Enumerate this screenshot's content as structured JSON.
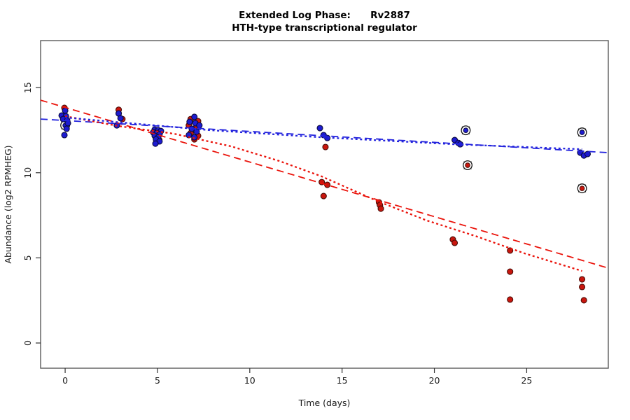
{
  "title": {
    "line1": "Extended Log Phase:      Rv2887",
    "line2": "HTH-type transcriptional regulator"
  },
  "chart_data": {
    "type": "scatter",
    "title": "Extended Log Phase: Rv2887 — HTH-type transcriptional regulator",
    "xlabel": "Time  (days)",
    "ylabel": "Abundance  (log2 RPMHEG)",
    "xlim": [
      -1.33,
      29.42
    ],
    "ylim": [
      -1.48,
      17.76
    ],
    "xticks": [
      0,
      5,
      10,
      15,
      20,
      25
    ],
    "yticks": [
      0,
      5,
      10,
      15
    ],
    "grid": false,
    "legend": "none",
    "colors": {
      "red_point_fill": "#c9160e",
      "red_point_stroke": "#4a0d07",
      "blue_point_fill": "#1d1bd0",
      "blue_point_stroke": "#0a0a3c",
      "red_line": "#ea120a",
      "blue_line": "#2323dd",
      "ring": "#141414",
      "box": "#5a5a5a",
      "tick": "#333333",
      "text": "#1a1a1a"
    },
    "series": [
      {
        "name": "red-points",
        "marker": "filled-circle",
        "color_key": "red",
        "points": [
          [
            -0.04,
            13.81
          ],
          [
            -0.04,
            13.24
          ],
          [
            2.9,
            13.7
          ],
          [
            3.1,
            13.15
          ],
          [
            5.0,
            12.29
          ],
          [
            5.1,
            11.92
          ],
          [
            6.8,
            13.15
          ],
          [
            7.2,
            13.03
          ],
          [
            6.7,
            12.78
          ],
          [
            7.1,
            12.66
          ],
          [
            6.8,
            12.33
          ],
          [
            7.2,
            12.17
          ],
          [
            7.0,
            11.96
          ],
          [
            14.1,
            11.51
          ],
          [
            13.9,
            9.45
          ],
          [
            14.2,
            9.29
          ],
          [
            14.0,
            8.63
          ],
          [
            17.0,
            8.26
          ],
          [
            17.05,
            8.1
          ],
          [
            17.1,
            7.89
          ],
          [
            21.0,
            6.08
          ],
          [
            21.1,
            5.88
          ],
          [
            24.1,
            5.43
          ],
          [
            24.1,
            4.19
          ],
          [
            24.1,
            2.55
          ],
          [
            28.0,
            3.74
          ],
          [
            28.0,
            3.29
          ],
          [
            28.1,
            2.51
          ]
        ]
      },
      {
        "name": "blue-points",
        "marker": "filled-circle",
        "color_key": "blue",
        "points": [
          [
            0.0,
            13.65
          ],
          [
            -0.19,
            13.36
          ],
          [
            0.04,
            13.32
          ],
          [
            -0.11,
            13.15
          ],
          [
            0.11,
            13.07
          ],
          [
            0.15,
            12.91
          ],
          [
            0.08,
            12.58
          ],
          [
            -0.04,
            12.21
          ],
          [
            2.9,
            13.48
          ],
          [
            3.0,
            13.2
          ],
          [
            2.8,
            12.78
          ],
          [
            4.85,
            12.53
          ],
          [
            5.04,
            12.5
          ],
          [
            5.19,
            12.45
          ],
          [
            4.77,
            12.37
          ],
          [
            4.96,
            12.33
          ],
          [
            5.11,
            12.25
          ],
          [
            4.85,
            12.17
          ],
          [
            5.04,
            12.08
          ],
          [
            4.92,
            11.96
          ],
          [
            5.11,
            11.84
          ],
          [
            4.89,
            11.71
          ],
          [
            7.0,
            13.28
          ],
          [
            6.74,
            12.99
          ],
          [
            7.05,
            12.91
          ],
          [
            7.27,
            12.78
          ],
          [
            6.86,
            12.58
          ],
          [
            7.12,
            12.41
          ],
          [
            6.7,
            12.21
          ],
          [
            7.0,
            12.08
          ],
          [
            13.8,
            12.62
          ],
          [
            14.0,
            12.21
          ],
          [
            14.2,
            12.04
          ],
          [
            21.1,
            11.92
          ],
          [
            21.3,
            11.75
          ],
          [
            21.4,
            11.67
          ],
          [
            27.9,
            11.18
          ],
          [
            28.1,
            11.01
          ],
          [
            28.3,
            11.1
          ]
        ]
      },
      {
        "name": "blue-circled-points",
        "marker": "circle-cross",
        "color_key": "blue",
        "points": [
          [
            0.0,
            12.78
          ],
          [
            21.7,
            12.49
          ],
          [
            28.0,
            12.37
          ]
        ]
      },
      {
        "name": "red-circled-points",
        "marker": "circle-cross",
        "color_key": "red",
        "points": [
          [
            21.8,
            10.44
          ],
          [
            28.0,
            9.08
          ]
        ]
      }
    ],
    "fits": [
      {
        "name": "red-dashed-fit",
        "style": "dashed",
        "color_key": "red",
        "points": [
          [
            -1.33,
            14.26
          ],
          [
            29.42,
            4.4
          ]
        ]
      },
      {
        "name": "blue-dashed-fit",
        "style": "dashed",
        "color_key": "blue",
        "points": [
          [
            -1.33,
            13.15
          ],
          [
            29.42,
            11.18
          ]
        ]
      },
      {
        "name": "red-dotted-fit",
        "style": "dotted",
        "color_key": "red",
        "points": [
          [
            0,
            13.32
          ],
          [
            2.9,
            12.74
          ],
          [
            5.9,
            12.29
          ],
          [
            9.0,
            11.55
          ],
          [
            11.6,
            10.69
          ],
          [
            13.9,
            9.78
          ],
          [
            16.9,
            8.34
          ],
          [
            19.6,
            7.19
          ],
          [
            22.2,
            6.29
          ],
          [
            24.9,
            5.26
          ],
          [
            28.0,
            4.23
          ]
        ]
      },
      {
        "name": "blue-dotted-fit",
        "style": "dotted",
        "color_key": "blue",
        "points": [
          [
            0,
            13.24
          ],
          [
            7.8,
            12.5
          ],
          [
            13.9,
            12.08
          ],
          [
            21.1,
            11.67
          ],
          [
            28.0,
            11.38
          ]
        ]
      }
    ]
  }
}
